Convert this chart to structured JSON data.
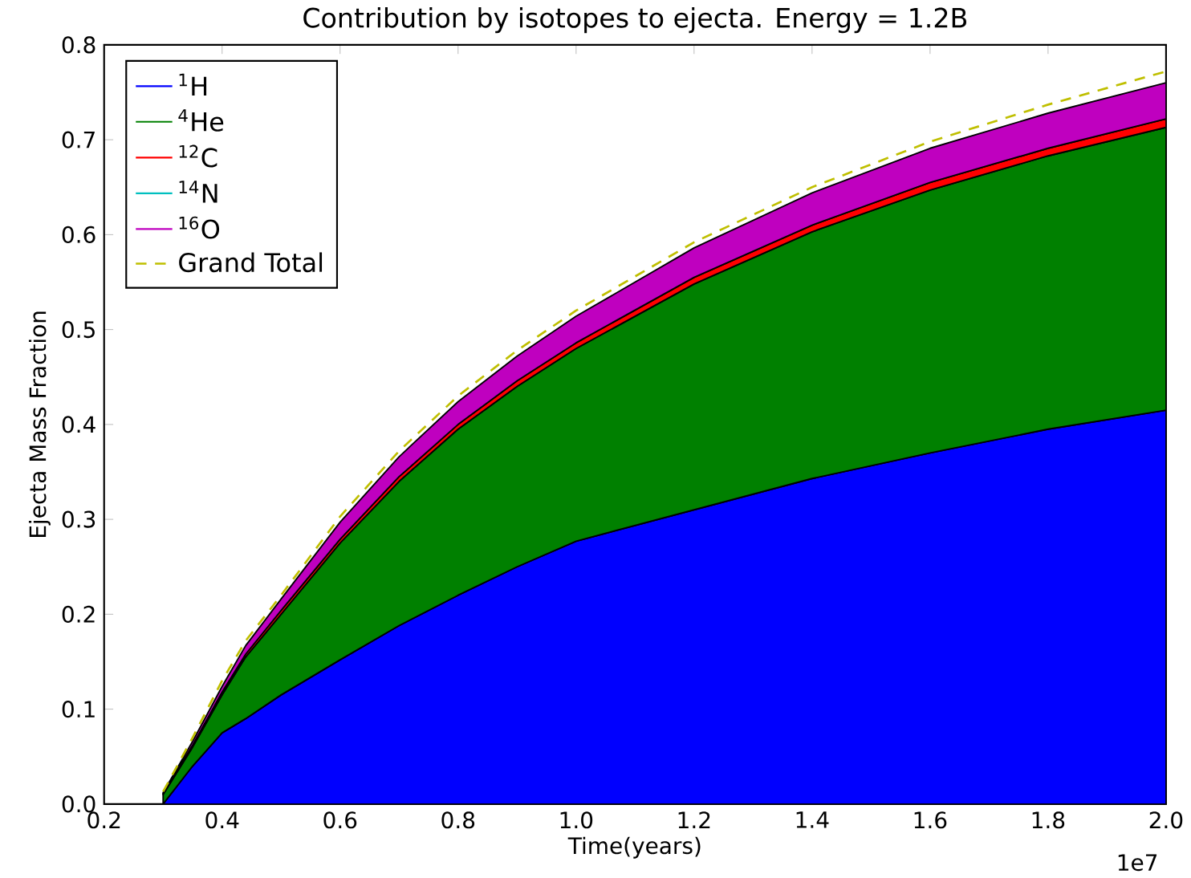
{
  "chart_data": {
    "type": "area",
    "stacked": true,
    "title": "Contribution by isotopes to ejecta. Energy = 1.2B",
    "xlabel": "Time(years)",
    "ylabel": "Ejecta Mass Fraction",
    "x": [
      0.3,
      0.35,
      0.4,
      0.44,
      0.5,
      0.6,
      0.7,
      0.8,
      0.9,
      1.0,
      1.2,
      1.4,
      1.6,
      1.8,
      2.0
    ],
    "series": [
      {
        "name": "$^{1}$H",
        "color": "#0000ff",
        "values": [
          0,
          0.04,
          0.075,
          0.09,
          0.115,
          0.152,
          0.188,
          0.22,
          0.25,
          0.277,
          0.31,
          0.343,
          0.37,
          0.395,
          0.415
        ]
      },
      {
        "name": "$^{4}$He",
        "color": "#008000",
        "values": [
          0.01,
          0.02,
          0.04,
          0.065,
          0.085,
          0.123,
          0.152,
          0.175,
          0.19,
          0.203,
          0.238,
          0.26,
          0.277,
          0.288,
          0.298
        ]
      },
      {
        "name": "$^{12}$C",
        "color": "#ff0000",
        "values": [
          0.001,
          0.002,
          0.003,
          0.003,
          0.004,
          0.004,
          0.005,
          0.005,
          0.006,
          0.006,
          0.007,
          0.007,
          0.008,
          0.008,
          0.009
        ]
      },
      {
        "name": "$^{14}$N",
        "color": "#00bfbf",
        "values": [
          null,
          null,
          null,
          null,
          null,
          null,
          null,
          null,
          null,
          null,
          null,
          null,
          null,
          null,
          null
        ]
      },
      {
        "name": "$^{16}$O",
        "color": "#bf00bf",
        "values": [
          0.001,
          0.004,
          0.006,
          0.009,
          0.012,
          0.018,
          0.021,
          0.024,
          0.026,
          0.028,
          0.031,
          0.034,
          0.036,
          0.037,
          0.038
        ]
      },
      {
        "name": "Grand Total",
        "type": "line",
        "line_style": "dashed",
        "color": "#bfbf00",
        "values": [
          0.013,
          0.07,
          0.13,
          0.172,
          0.22,
          0.303,
          0.372,
          0.43,
          0.478,
          0.52,
          0.592,
          0.65,
          0.698,
          0.737,
          0.772
        ]
      }
    ],
    "xlim": [
      0.2,
      2.0
    ],
    "xticks": [
      {
        "value": 0.2,
        "label": "0.2"
      },
      {
        "value": 0.4,
        "label": "0.4"
      },
      {
        "value": 0.6,
        "label": "0.6"
      },
      {
        "value": 0.8,
        "label": "0.8"
      },
      {
        "value": 1.0,
        "label": "1.0"
      },
      {
        "value": 1.2,
        "label": "1.2"
      },
      {
        "value": 1.4,
        "label": "1.4"
      },
      {
        "value": 1.6,
        "label": "1.6"
      },
      {
        "value": 1.8,
        "label": "1.8"
      },
      {
        "value": 2.0,
        "label": "2.0"
      }
    ],
    "ylim": [
      0,
      0.8
    ],
    "yticks": [
      {
        "value": 0,
        "label": "0.0"
      },
      {
        "value": 0.1,
        "label": "0.1"
      },
      {
        "value": 0.2,
        "label": "0.2"
      },
      {
        "value": 0.3,
        "label": "0.3"
      },
      {
        "value": 0.4,
        "label": "0.4"
      },
      {
        "value": 0.5,
        "label": "0.5"
      },
      {
        "value": 0.6,
        "label": "0.6"
      },
      {
        "value": 0.7,
        "label": "0.7"
      },
      {
        "value": 0.8,
        "label": "0.8"
      }
    ],
    "annotations": [
      "1e7"
    ],
    "legend": "top left",
    "grid": false,
    "marker": "none"
  }
}
